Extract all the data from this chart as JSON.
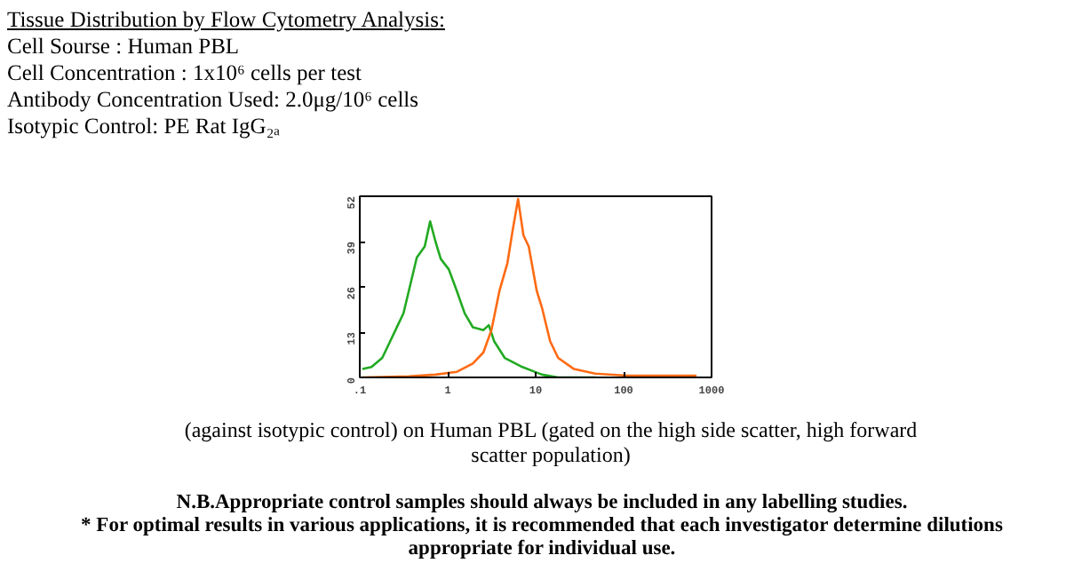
{
  "chart_data": {
    "type": "line",
    "title": "Tissue Distribution by Flow Cytometry Analysis:",
    "annotations": [
      "Cell Sourse :  Human PBL",
      "Cell Concentration :  1x10⁶ cells per test",
      "Antibody Concentration Used:  2.0μg/10⁶ cells",
      "Isotypic Control: PE Rat IgG₂ₐ",
      "(against isotypic control) on Human PBL (gated on the high side scatter, high forward scatter population)",
      "N.B.Appropriate control samples should always be included in any labelling studies.",
      "* For optimal results in various applications, it is recommended that each investigator determine dilutions appropriate for individual use."
    ],
    "series": [
      {
        "color": "#22aa22",
        "x": [
          0.107,
          0.136,
          0.18,
          0.207,
          0.255,
          0.314,
          0.361,
          0.445,
          0.548,
          0.631,
          0.726,
          0.834,
          1.03,
          1.27,
          1.56,
          1.93,
          2.55,
          2.93,
          3.37,
          4.45,
          6.76,
          11.8,
          18,
          47.7
        ],
        "values": [
          2.4,
          3,
          5.6,
          8.8,
          13.6,
          18.4,
          24.8,
          34.4,
          37.6,
          44.8,
          39,
          34,
          31,
          24.8,
          18.4,
          14.4,
          13.6,
          15,
          10.4,
          5.6,
          3.2,
          0.8,
          0,
          0
        ]
      },
      {
        "color": "#ff6a13",
        "x": [
          0.107,
          0.361,
          0.726,
          1.27,
          1.93,
          2.55,
          3.14,
          3.87,
          4.77,
          5.49,
          6.31,
          7.26,
          8.34,
          10.3,
          11.8,
          14.6,
          18,
          27.3,
          47.7,
          110,
          676
        ],
        "values": [
          0,
          0.3,
          0.8,
          1.6,
          4,
          7.2,
          13.6,
          24.8,
          32.8,
          42.4,
          51.2,
          40.8,
          37.6,
          24.8,
          20,
          10.4,
          5.6,
          2.4,
          1.1,
          0.5,
          0.5
        ]
      }
    ],
    "log": "x",
    "xlim": [
      0.1,
      1000
    ],
    "xticks": [
      {
        "value": 0.1,
        "label": ".1"
      },
      1,
      10,
      100,
      1000
    ],
    "ylim": [
      0,
      52
    ],
    "yticks": [
      0,
      13,
      26,
      39,
      52
    ],
    "grid": false
  }
}
